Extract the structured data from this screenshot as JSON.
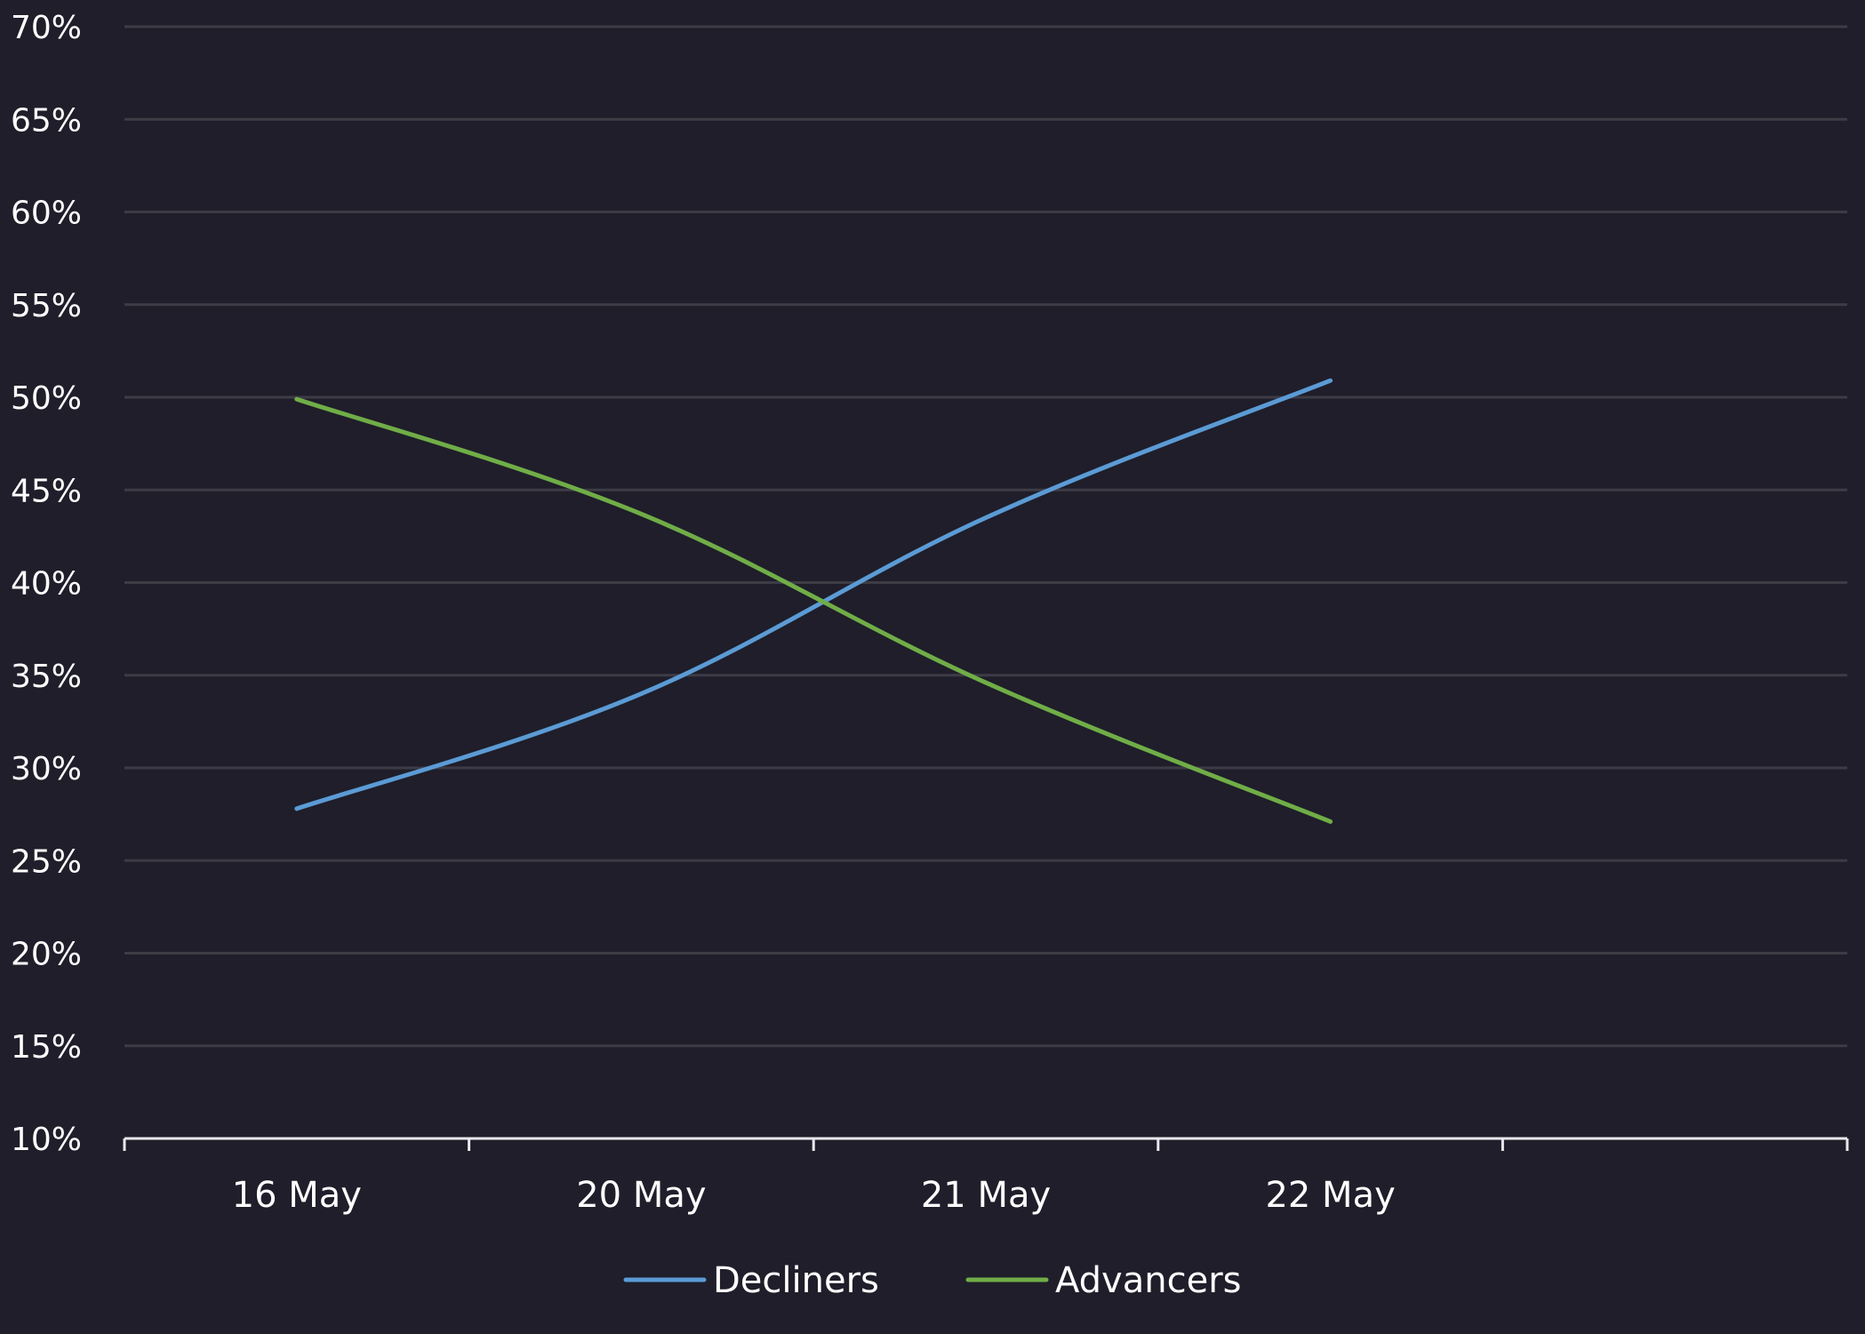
{
  "chart_data": {
    "type": "line",
    "title": "",
    "xlabel": "",
    "ylabel": "",
    "categories": [
      "16 May",
      "20 May",
      "21 May",
      "22 May"
    ],
    "series": [
      {
        "name": "Decliners",
        "values": [
          27.8,
          34.0,
          43.5,
          50.9
        ],
        "color": "#5b9bd5"
      },
      {
        "name": "Advancers",
        "values": [
          49.9,
          43.7,
          34.6,
          27.1
        ],
        "color": "#70ad47"
      }
    ],
    "ylim": [
      10,
      70
    ],
    "yticks": [
      10,
      15,
      20,
      25,
      30,
      35,
      40,
      45,
      50,
      55,
      60,
      65,
      70
    ],
    "ytick_format": "%",
    "x_slots": 5,
    "grid": true,
    "legend": "bottom-center",
    "background": "#1f1e2a"
  }
}
